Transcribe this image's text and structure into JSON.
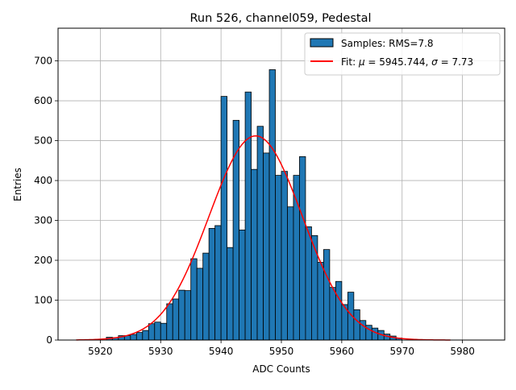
{
  "chart_data": {
    "type": "bar",
    "title": "Run 526, channel059, Pedestal",
    "xlabel": "ADC Counts",
    "ylabel": "Entries",
    "xlim": [
      5913,
      5987
    ],
    "ylim": [
      0,
      782
    ],
    "grid": true,
    "legend_placement": "top-right",
    "xticks": [
      5920,
      5930,
      5940,
      5950,
      5960,
      5970,
      5980
    ],
    "yticks": [
      0,
      100,
      200,
      300,
      400,
      500,
      600,
      700
    ],
    "bar_fill": "#1f77b4",
    "bar_edge": "#000000",
    "fit_color": "#ff0000",
    "histogram": {
      "legend": "Samples: RMS=7.8",
      "bins_left_edge": [
        5921,
        5922,
        5923,
        5924,
        5925,
        5926,
        5927,
        5928,
        5929,
        5930,
        5931,
        5932,
        5933,
        5934,
        5935,
        5936,
        5937,
        5938,
        5939,
        5940,
        5941,
        5942,
        5943,
        5944,
        5945,
        5946,
        5947,
        5948,
        5949,
        5950,
        5951,
        5952,
        5953,
        5954,
        5955,
        5956,
        5957,
        5958,
        5959,
        5960,
        5961,
        5962,
        5963,
        5964,
        5965,
        5966,
        5967,
        5968,
        5969
      ],
      "bin_width": 1,
      "counts": [
        7,
        6,
        11,
        11,
        14,
        19,
        24,
        41,
        45,
        42,
        91,
        103,
        125,
        124,
        204,
        180,
        218,
        280,
        287,
        611,
        232,
        551,
        276,
        622,
        428,
        536,
        469,
        678,
        413,
        423,
        334,
        413,
        460,
        284,
        262,
        195,
        227,
        132,
        147,
        89,
        120,
        76,
        49,
        37,
        30,
        24,
        15,
        10,
        5
      ]
    },
    "fit": {
      "legend_prefix": "Fit: ",
      "legend_mu_symbol": "μ",
      "legend_mu_text": " = 5945.744, ",
      "legend_sigma_symbol": "σ",
      "legend_sigma_text": " = 7.73",
      "mu": 5945.744,
      "sigma": 7.73,
      "amplitude": 512,
      "x_range": [
        5916,
        5978
      ]
    }
  }
}
